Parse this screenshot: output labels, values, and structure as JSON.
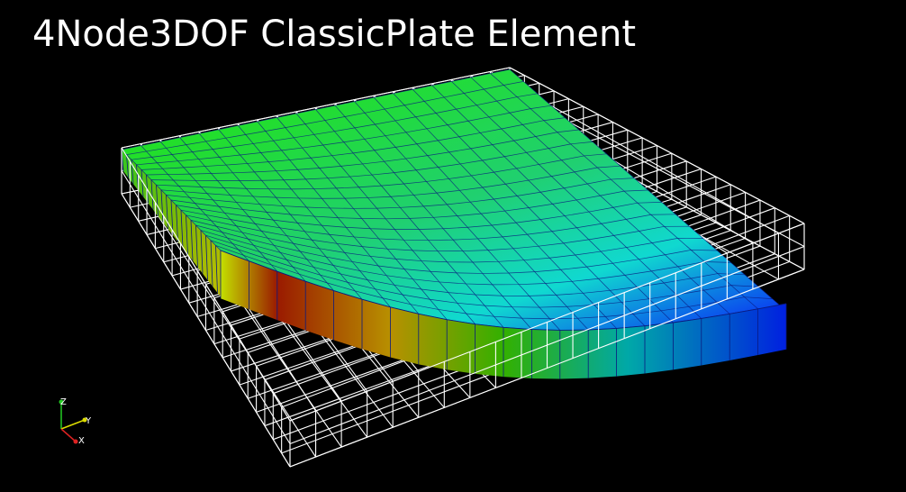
{
  "title": "4Node3DOF ClassicPlate Element",
  "colors": {
    "background": "#000000",
    "title_text": "#ffffff",
    "mesh_wire": "#ffffff",
    "element_edges": "#0a1a80",
    "axis_x": "#dd2222",
    "axis_y": "#dddd00",
    "axis_z": "#22cc22"
  },
  "colormap": [
    "blue",
    "cyan",
    "green",
    "yellow",
    "red"
  ],
  "axes": {
    "x_label": "X",
    "y_label": "Y",
    "z_label": "Z"
  }
}
